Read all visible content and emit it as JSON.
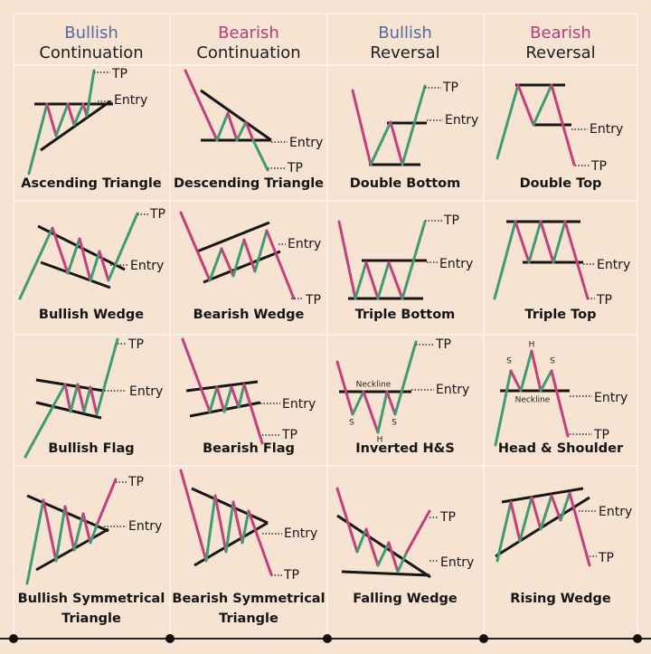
{
  "header": [
    {
      "kind": "Bullish",
      "title": "Continuation"
    },
    {
      "kind": "Bearish",
      "title": "Continuation"
    },
    {
      "kind": "Bullish",
      "title": "Reversal"
    },
    {
      "kind": "Bearish",
      "title": "Reversal"
    }
  ],
  "patterns": [
    {
      "name": [
        "Ascending Triangle"
      ],
      "labels": [
        "TP",
        "Entry"
      ]
    },
    {
      "name": [
        "Descending Triangle"
      ],
      "labels": [
        "Entry",
        "TP"
      ]
    },
    {
      "name": [
        "Double Bottom"
      ],
      "labels": [
        "TP",
        "Entry"
      ]
    },
    {
      "name": [
        "Double Top"
      ],
      "labels": [
        "Entry",
        "TP"
      ]
    },
    {
      "name": [
        "Bullish Wedge"
      ],
      "labels": [
        "TP",
        "Entry"
      ]
    },
    {
      "name": [
        "Bearish Wedge"
      ],
      "labels": [
        "Entry",
        "TP"
      ]
    },
    {
      "name": [
        "Triple Bottom"
      ],
      "labels": [
        "TP",
        "Entry"
      ]
    },
    {
      "name": [
        "Triple Top"
      ],
      "labels": [
        "Entry",
        "TP"
      ]
    },
    {
      "name": [
        "Bullish Flag"
      ],
      "labels": [
        "TP",
        "Entry"
      ]
    },
    {
      "name": [
        "Bearish Flag"
      ],
      "labels": [
        "Entry",
        "TP"
      ]
    },
    {
      "name": [
        "Inverted H&S"
      ],
      "labels": [
        "TP",
        "Entry",
        "Neckline",
        "S",
        "H",
        "S"
      ]
    },
    {
      "name": [
        "Head & Shoulder"
      ],
      "labels": [
        "Entry",
        "TP",
        "Neckline",
        "S",
        "H",
        "S"
      ]
    },
    {
      "name": [
        "Bullish Symmetrical",
        "Triangle"
      ],
      "labels": [
        "TP",
        "Entry"
      ]
    },
    {
      "name": [
        "Bearish Symmetrical",
        "Triangle"
      ],
      "labels": [
        "Entry",
        "TP"
      ]
    },
    {
      "name": [
        "Falling Wedge"
      ],
      "labels": [
        "TP",
        "Entry"
      ]
    },
    {
      "name": [
        "Rising Wedge"
      ],
      "labels": [
        "Entry",
        "TP"
      ]
    }
  ]
}
